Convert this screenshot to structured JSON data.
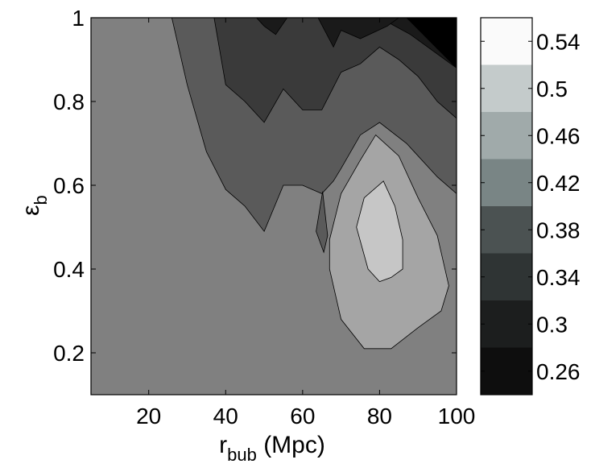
{
  "chart_data": {
    "type": "heatmap",
    "subtype": "filled-contour",
    "title": "",
    "xlabel": {
      "main": "r",
      "sub": "bub",
      "unit": " (Mpc)"
    },
    "ylabel": {
      "main": "ε",
      "sub": "b"
    },
    "xlim": [
      5,
      100
    ],
    "ylim": [
      0.1,
      1.0
    ],
    "xticks": [
      20,
      40,
      60,
      80,
      100
    ],
    "xtick_labels": [
      "20",
      "40",
      "60",
      "80",
      "100"
    ],
    "yticks": [
      0.2,
      0.4,
      0.6,
      0.8,
      1.0
    ],
    "ytick_labels": [
      "0.2",
      "0.4",
      "0.6",
      "0.8",
      "1"
    ],
    "colorbar": {
      "range": [
        0.24,
        0.56
      ],
      "ticks": [
        0.26,
        0.3,
        0.34,
        0.38,
        0.42,
        0.46,
        0.5,
        0.54
      ],
      "tick_labels": [
        "0.26",
        "0.3",
        "0.34",
        "0.38",
        "0.42",
        "0.46",
        "0.5",
        "0.54"
      ],
      "levels": [
        {
          "from": 0.24,
          "to": 0.28,
          "color": "#0e0e0e"
        },
        {
          "from": 0.28,
          "to": 0.32,
          "color": "#1c1e1e"
        },
        {
          "from": 0.32,
          "to": 0.36,
          "color": "#2f3434"
        },
        {
          "from": 0.36,
          "to": 0.4,
          "color": "#4b5252"
        },
        {
          "from": 0.4,
          "to": 0.44,
          "color": "#798585"
        },
        {
          "from": 0.44,
          "to": 0.48,
          "color": "#a0aaaa"
        },
        {
          "from": 0.48,
          "to": 0.52,
          "color": "#c4cbcb"
        },
        {
          "from": 0.52,
          "to": 0.56,
          "color": "#fafafa"
        }
      ]
    },
    "regions": [
      {
        "level": "0.38-0.42 (background)",
        "color": "#808080",
        "polygon": [
          [
            5,
            0.1
          ],
          [
            100,
            0.1
          ],
          [
            100,
            1.0
          ],
          [
            5,
            1.0
          ]
        ]
      },
      {
        "level": "0.34-0.38",
        "color": "#5a5a5a",
        "polygon": [
          [
            26,
            1.0
          ],
          [
            100,
            1.0
          ],
          [
            100,
            0.58
          ],
          [
            95,
            0.62
          ],
          [
            87,
            0.7
          ],
          [
            80,
            0.75
          ],
          [
            75,
            0.72
          ],
          [
            70,
            0.64
          ],
          [
            68,
            0.61
          ],
          [
            65,
            0.58
          ],
          [
            60,
            0.6
          ],
          [
            55,
            0.6
          ],
          [
            50,
            0.49
          ],
          [
            45,
            0.55
          ],
          [
            40,
            0.59
          ],
          [
            35,
            0.68
          ],
          [
            30,
            0.84
          ]
        ]
      },
      {
        "level": "0.30-0.34",
        "color": "#3a3a3a",
        "polygon": [
          [
            37,
            1.0
          ],
          [
            100,
            1.0
          ],
          [
            100,
            0.76
          ],
          [
            95,
            0.8
          ],
          [
            90,
            0.86
          ],
          [
            85,
            0.9
          ],
          [
            80,
            0.93
          ],
          [
            75,
            0.89
          ],
          [
            70,
            0.87
          ],
          [
            65,
            0.78
          ],
          [
            60,
            0.78
          ],
          [
            55,
            0.83
          ],
          [
            50,
            0.75
          ],
          [
            45,
            0.8
          ],
          [
            40,
            0.84
          ]
        ]
      },
      {
        "level": "0.26-0.30",
        "color": "#1a1a1a",
        "polygon": [
          [
            45,
            1.0
          ],
          [
            100,
            1.0
          ],
          [
            100,
            0.88
          ],
          [
            94,
            0.92
          ],
          [
            88,
            0.96
          ],
          [
            80,
            1.0
          ]
        ]
      },
      {
        "level": "0.26-0.30 (upper middle)",
        "color": "#1a1a1a",
        "polygon": [
          [
            48,
            1.0
          ],
          [
            56,
            1.0
          ],
          [
            53,
            0.96
          ],
          [
            50,
            0.98
          ]
        ]
      },
      {
        "level": "0.26-0.30 (upper right)",
        "color": "#1a1a1a",
        "polygon": [
          [
            64,
            1.0
          ],
          [
            85,
            1.0
          ],
          [
            82,
            0.98
          ],
          [
            75,
            0.95
          ],
          [
            70,
            0.97
          ],
          [
            68,
            0.93
          ]
        ]
      },
      {
        "level": "<0.26",
        "color": "#000000",
        "polygon": [
          [
            87,
            1.0
          ],
          [
            100,
            1.0
          ],
          [
            100,
            0.88
          ]
        ]
      },
      {
        "level": "0.34-0.38 (small island)",
        "color": "#5a5a5a",
        "polygon": [
          [
            65.2,
            0.585
          ],
          [
            66.5,
            0.48
          ],
          [
            65.5,
            0.44
          ],
          [
            63.5,
            0.49
          ]
        ]
      },
      {
        "level": "0.42-0.46",
        "color": "#a5a5a5",
        "polygon": [
          [
            79,
            0.72
          ],
          [
            85,
            0.67
          ],
          [
            90,
            0.57
          ],
          [
            95,
            0.48
          ],
          [
            98,
            0.36
          ],
          [
            96,
            0.3
          ],
          [
            90,
            0.26
          ],
          [
            83,
            0.21
          ],
          [
            76,
            0.21
          ],
          [
            70,
            0.28
          ],
          [
            67,
            0.4
          ],
          [
            67,
            0.47
          ],
          [
            70,
            0.58
          ],
          [
            75,
            0.66
          ]
        ]
      },
      {
        "level": "0.46-0.50",
        "color": "#c6c6c6",
        "polygon": [
          [
            81,
            0.61
          ],
          [
            84,
            0.55
          ],
          [
            86,
            0.47
          ],
          [
            86,
            0.4
          ],
          [
            83,
            0.38
          ],
          [
            80,
            0.37
          ],
          [
            77,
            0.4
          ],
          [
            74,
            0.5
          ],
          [
            76,
            0.57
          ]
        ]
      }
    ]
  }
}
